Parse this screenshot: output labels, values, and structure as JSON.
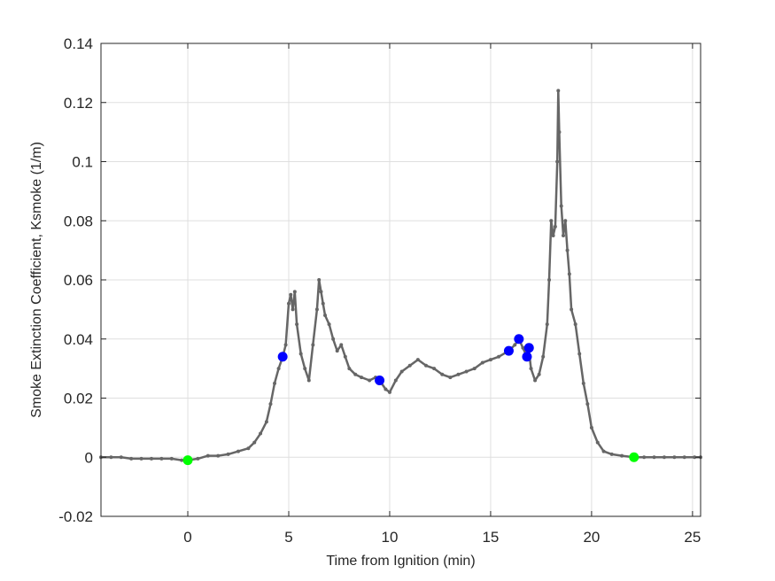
{
  "chart_data": {
    "type": "line",
    "title": "",
    "xlabel": "Time from Ignition (min)",
    "ylabel": "Smoke Extinction Coefficient, Ksmoke (1/m)",
    "xlim": [
      -4.3,
      25.4
    ],
    "ylim": [
      -0.02,
      0.14
    ],
    "xticks": [
      0,
      5,
      10,
      15,
      20,
      25
    ],
    "xtick_labels": [
      "0",
      "5",
      "10",
      "15",
      "20",
      "25"
    ],
    "yticks": [
      -0.02,
      0,
      0.02,
      0.04,
      0.06,
      0.08,
      0.1,
      0.12,
      0.14
    ],
    "ytick_labels": [
      "-0.02",
      "0",
      "0.02",
      "0.04",
      "0.06",
      "0.08",
      "0.1",
      "0.12",
      "0.14"
    ],
    "grid": true,
    "legend": null,
    "series": [
      {
        "name": "Ksmoke",
        "color": "#666666",
        "style": "line-with-dot-markers",
        "x": [
          -4.3,
          -3.8,
          -3.3,
          -2.8,
          -2.3,
          -1.8,
          -1.3,
          -0.8,
          -0.3,
          0,
          0.5,
          1.0,
          1.5,
          2.0,
          2.5,
          3.0,
          3.3,
          3.6,
          3.9,
          4.1,
          4.3,
          4.5,
          4.7,
          4.85,
          5.0,
          5.1,
          5.2,
          5.3,
          5.4,
          5.6,
          5.8,
          6.0,
          6.2,
          6.4,
          6.5,
          6.6,
          6.7,
          6.8,
          7.0,
          7.2,
          7.4,
          7.6,
          7.8,
          8.0,
          8.3,
          8.6,
          9.0,
          9.3,
          9.5,
          9.8,
          10.0,
          10.3,
          10.6,
          11.0,
          11.4,
          11.8,
          12.2,
          12.6,
          13.0,
          13.4,
          13.8,
          14.2,
          14.6,
          15.0,
          15.4,
          15.9,
          16.2,
          16.4,
          16.6,
          16.8,
          16.9,
          17.0,
          17.2,
          17.4,
          17.6,
          17.8,
          17.9,
          18.0,
          18.1,
          18.2,
          18.3,
          18.35,
          18.4,
          18.5,
          18.6,
          18.7,
          18.8,
          18.9,
          19.0,
          19.2,
          19.4,
          19.6,
          19.8,
          20.0,
          20.3,
          20.6,
          21.0,
          21.5,
          22.1,
          22.6,
          23.1,
          23.6,
          24.1,
          24.6,
          25.1,
          25.4
        ],
        "y": [
          0.0,
          0.0,
          0.0,
          -0.0005,
          -0.0005,
          -0.0005,
          -0.0005,
          -0.0005,
          -0.001,
          -0.001,
          -0.0005,
          0.0005,
          0.0005,
          0.001,
          0.002,
          0.003,
          0.005,
          0.008,
          0.012,
          0.018,
          0.025,
          0.03,
          0.034,
          0.038,
          0.052,
          0.055,
          0.05,
          0.056,
          0.045,
          0.035,
          0.03,
          0.026,
          0.038,
          0.05,
          0.06,
          0.056,
          0.052,
          0.048,
          0.045,
          0.04,
          0.036,
          0.038,
          0.034,
          0.03,
          0.028,
          0.027,
          0.026,
          0.027,
          0.026,
          0.023,
          0.022,
          0.026,
          0.029,
          0.031,
          0.033,
          0.031,
          0.03,
          0.028,
          0.027,
          0.028,
          0.029,
          0.03,
          0.032,
          0.033,
          0.034,
          0.036,
          0.038,
          0.04,
          0.037,
          0.034,
          0.036,
          0.03,
          0.026,
          0.028,
          0.034,
          0.045,
          0.06,
          0.08,
          0.075,
          0.078,
          0.1,
          0.124,
          0.11,
          0.085,
          0.075,
          0.08,
          0.07,
          0.062,
          0.05,
          0.045,
          0.035,
          0.025,
          0.018,
          0.01,
          0.005,
          0.002,
          0.001,
          0.0005,
          0.0,
          0.0,
          0.0,
          0.0,
          0.0,
          0.0,
          0.0,
          0.0
        ]
      },
      {
        "name": "blue-events",
        "color": "#0000FF",
        "style": "markers",
        "x": [
          4.7,
          9.5,
          15.9,
          16.4,
          16.9,
          16.8
        ],
        "y": [
          0.034,
          0.026,
          0.036,
          0.04,
          0.037,
          0.034
        ]
      },
      {
        "name": "green-events",
        "color": "#00FF00",
        "style": "markers",
        "x": [
          0.0,
          22.1
        ],
        "y": [
          -0.001,
          0.0
        ]
      }
    ]
  }
}
